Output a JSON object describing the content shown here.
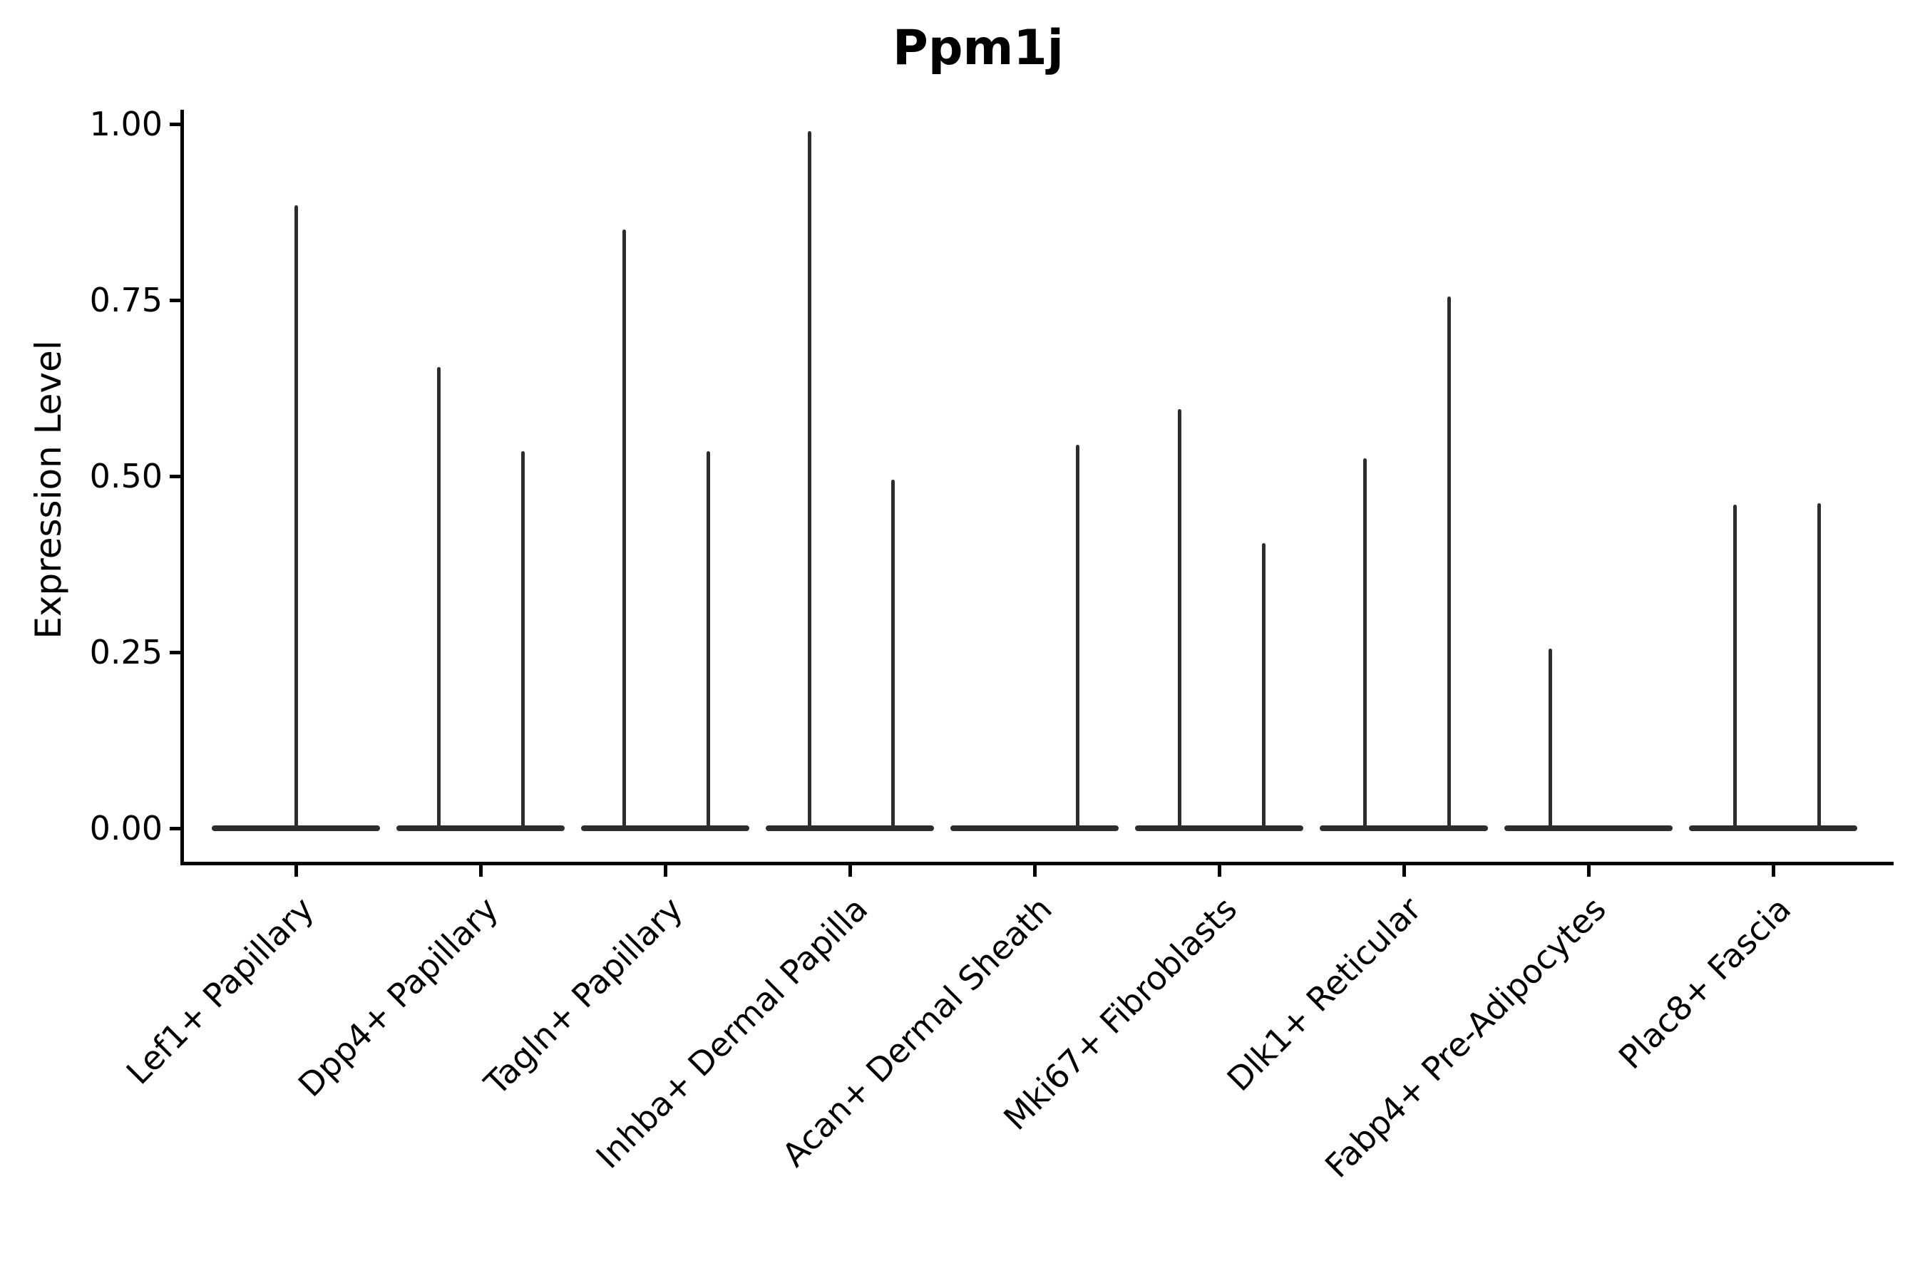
{
  "chart_data": {
    "type": "violin",
    "title": "Ppm1j",
    "ylabel": "Expression Level",
    "xlabel": "",
    "ylim": [
      0.0,
      1.0
    ],
    "yticks": [
      0.0,
      0.25,
      0.5,
      0.75,
      1.0
    ],
    "ytick_labels": [
      "0.00",
      "0.25",
      "0.50",
      "0.75",
      "1.00"
    ],
    "xtick_rotation": 45,
    "grid": false,
    "legend": "none",
    "stroke_color": "#2d2d2d",
    "axis_color": "#000000",
    "categories": [
      "Lef1+ Papillary",
      "Dpp4+ Papillary",
      "Tagln+ Papillary",
      "Inhba+ Dermal Papilla",
      "Acan+ Dermal Sheath",
      "Mki67+ Fibroblasts",
      "Dlk1+ Reticular",
      "Fabp4+ Pre-Adipocytes",
      "Plac8+ Fascia"
    ],
    "violins": [
      {
        "category": "Lef1+ Papillary",
        "baseline_value": 0.0,
        "spikes": [
          {
            "dx": 0,
            "max": 0.885
          }
        ]
      },
      {
        "category": "Dpp4+ Papillary",
        "baseline_value": 0.0,
        "spikes": [
          {
            "dx": -59,
            "max": 0.655
          },
          {
            "dx": 59,
            "max": 0.535
          }
        ]
      },
      {
        "category": "Tagln+ Papillary",
        "baseline_value": 0.0,
        "spikes": [
          {
            "dx": -58,
            "max": 0.85
          },
          {
            "dx": 60,
            "max": 0.535
          }
        ]
      },
      {
        "category": "Inhba+ Dermal Papilla",
        "baseline_value": 0.0,
        "spikes": [
          {
            "dx": -57,
            "max": 0.99
          },
          {
            "dx": 60,
            "max": 0.495
          }
        ]
      },
      {
        "category": "Acan+ Dermal Sheath",
        "baseline_value": 0.0,
        "spikes": [
          {
            "dx": 60,
            "max": 0.545
          }
        ]
      },
      {
        "category": "Mki67+ Fibroblasts",
        "baseline_value": 0.0,
        "spikes": [
          {
            "dx": -56,
            "max": 0.595
          },
          {
            "dx": 62,
            "max": 0.405
          }
        ]
      },
      {
        "category": "Dlk1+ Reticular",
        "baseline_value": 0.0,
        "spikes": [
          {
            "dx": -55,
            "max": 0.525
          },
          {
            "dx": 63,
            "max": 0.755
          }
        ]
      },
      {
        "category": "Fabp4+ Pre-Adipocytes",
        "baseline_value": 0.0,
        "spikes": [
          {
            "dx": -54,
            "max": 0.255
          }
        ]
      },
      {
        "category": "Plac8+ Fascia",
        "baseline_value": 0.0,
        "spikes": [
          {
            "dx": -54,
            "max": 0.46
          },
          {
            "dx": 64,
            "max": 0.462
          }
        ]
      }
    ]
  }
}
